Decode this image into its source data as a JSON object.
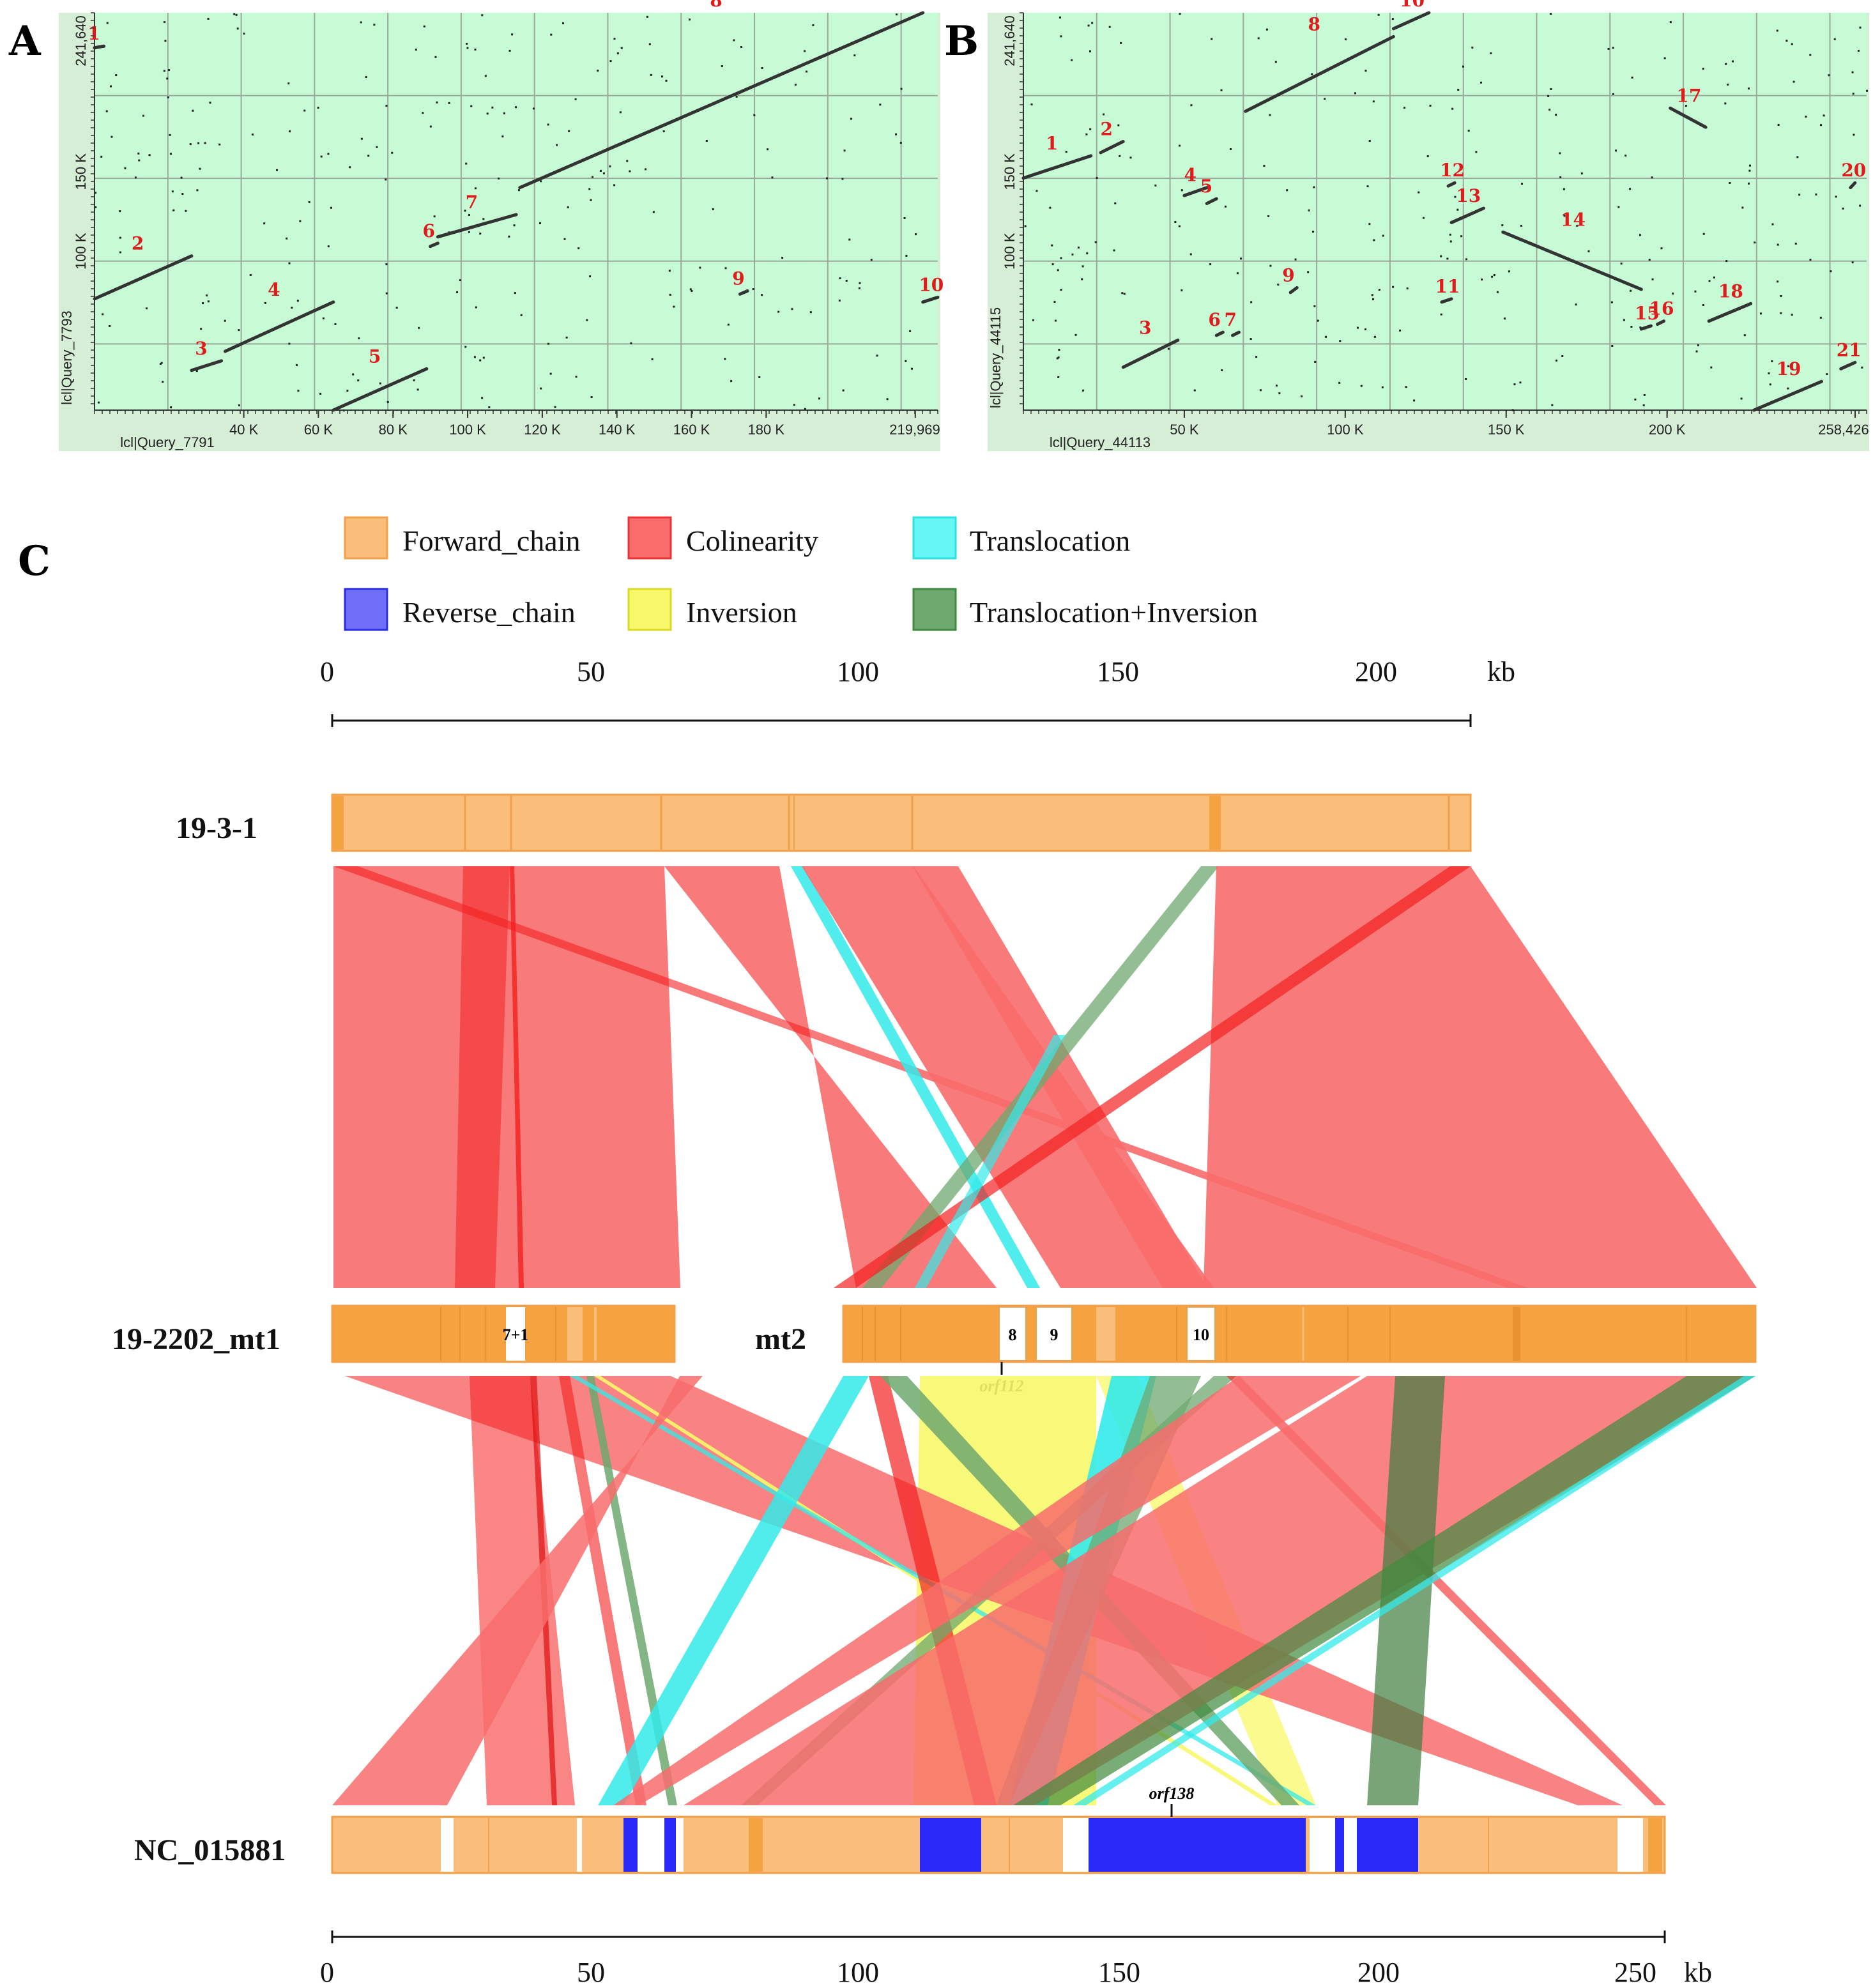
{
  "panels": {
    "a": "A",
    "b": "B",
    "c": "C"
  },
  "dotplot_a": {
    "y_axis_label": "lcl|Query_7793",
    "x_axis_label": "lcl|Query_7791",
    "y_ticks": [
      {
        "v": 241640,
        "t": "241,640"
      },
      {
        "v": 150000,
        "t": "150 K"
      },
      {
        "v": 100000,
        "t": "100 K"
      }
    ],
    "x_ticks": [
      {
        "v": 40000,
        "t": "40 K"
      },
      {
        "v": 60000,
        "t": "60 K"
      },
      {
        "v": 80000,
        "t": "80 K"
      },
      {
        "v": 100000,
        "t": "100 K"
      },
      {
        "v": 120000,
        "t": "120 K"
      },
      {
        "v": 140000,
        "t": "140 K"
      },
      {
        "v": 160000,
        "t": "160 K"
      },
      {
        "v": 180000,
        "t": "180 K"
      },
      {
        "v": 219969,
        "t": "219,969"
      }
    ],
    "x_max": 226000,
    "y_max": 250000,
    "segments": [
      {
        "label": "1",
        "x": [
          0,
          2500
        ],
        "y": [
          228000,
          229000
        ]
      },
      {
        "label": "2",
        "x": [
          0,
          26000
        ],
        "y": [
          70000,
          97000
        ]
      },
      {
        "label": "3",
        "x": [
          26000,
          34000
        ],
        "y": [
          25000,
          31000
        ]
      },
      {
        "label": "4",
        "x": [
          35000,
          64000
        ],
        "y": [
          37000,
          68000
        ]
      },
      {
        "label": "5",
        "x": [
          64000,
          89000
        ],
        "y": [
          0,
          26000
        ]
      },
      {
        "label": "6",
        "x": [
          90000,
          92000
        ],
        "y": [
          103000,
          105000
        ]
      },
      {
        "label": "7",
        "x": [
          92000,
          113000
        ],
        "y": [
          109000,
          123000
        ]
      },
      {
        "label": "8",
        "x": [
          114000,
          222000
        ],
        "y": [
          140000,
          250000
        ]
      },
      {
        "label": "9",
        "x": [
          173000,
          175000
        ],
        "y": [
          73000,
          75000
        ]
      },
      {
        "label": "10",
        "x": [
          222000,
          226000
        ],
        "y": [
          68000,
          71000
        ]
      }
    ]
  },
  "dotplot_b": {
    "y_axis_label": "lcl|Query_44115",
    "x_axis_label": "lcl|Query_44113",
    "y_ticks": [
      {
        "v": 241640,
        "t": "241,640"
      },
      {
        "v": 150000,
        "t": "150 K"
      },
      {
        "v": 100000,
        "t": "100 K"
      }
    ],
    "x_ticks": [
      {
        "v": 50000,
        "t": "50 K"
      },
      {
        "v": 100000,
        "t": "100 K"
      },
      {
        "v": 150000,
        "t": "150 K"
      },
      {
        "v": 200000,
        "t": "200 K"
      },
      {
        "v": 258426,
        "t": "258,426"
      }
    ],
    "x_max": 262000,
    "y_max": 250000,
    "segments": [
      {
        "label": "1",
        "x": [
          0,
          21000
        ],
        "y": [
          146000,
          160000
        ]
      },
      {
        "label": "2",
        "x": [
          24000,
          31000
        ],
        "y": [
          162000,
          169000
        ]
      },
      {
        "label": "3",
        "x": [
          31000,
          48000
        ],
        "y": [
          27000,
          44000
        ]
      },
      {
        "label": "4",
        "x": [
          50000,
          57000
        ],
        "y": [
          135000,
          140000
        ]
      },
      {
        "label": "5",
        "x": [
          57000,
          60000
        ],
        "y": [
          130000,
          133000
        ]
      },
      {
        "label": "6",
        "x": [
          60000,
          62000
        ],
        "y": [
          47000,
          49000
        ]
      },
      {
        "label": "7",
        "x": [
          65000,
          67000
        ],
        "y": [
          47000,
          49000
        ]
      },
      {
        "label": "8",
        "x": [
          69000,
          115000
        ],
        "y": [
          188000,
          235000
        ]
      },
      {
        "label": "9",
        "x": [
          83000,
          85000
        ],
        "y": [
          74000,
          77000
        ]
      },
      {
        "label": "10",
        "x": [
          115000,
          126000
        ],
        "y": [
          240000,
          250000
        ]
      },
      {
        "label": "11",
        "x": [
          130000,
          133000
        ],
        "y": [
          68000,
          70000
        ]
      },
      {
        "label": "12",
        "x": [
          132000,
          134000
        ],
        "y": [
          141000,
          143000
        ]
      },
      {
        "label": "13",
        "x": [
          133000,
          143000
        ],
        "y": [
          118000,
          127000
        ]
      },
      {
        "label": "14",
        "x": [
          149000,
          192000
        ],
        "y": [
          112000,
          76000
        ]
      },
      {
        "label": "15",
        "x": [
          192000,
          195000
        ],
        "y": [
          51000,
          53000
        ]
      },
      {
        "label": "16",
        "x": [
          197000,
          199000
        ],
        "y": [
          54000,
          56000
        ]
      },
      {
        "label": "17",
        "x": [
          201000,
          212000
        ],
        "y": [
          190000,
          178000
        ]
      },
      {
        "label": "18",
        "x": [
          213000,
          226000
        ],
        "y": [
          56000,
          67000
        ]
      },
      {
        "label": "19",
        "x": [
          227000,
          248000
        ],
        "y": [
          0,
          18000
        ]
      },
      {
        "label": "20",
        "x": [
          257000,
          258400
        ],
        "y": [
          140000,
          143000
        ]
      },
      {
        "label": "21",
        "x": [
          254000,
          258400
        ],
        "y": [
          26000,
          30000
        ]
      }
    ]
  },
  "legend": [
    {
      "key": "forward",
      "label": "Forward_chain",
      "color": "#FBBE7A",
      "stroke": "#F0A04A"
    },
    {
      "key": "colinear",
      "label": "Colinearity",
      "color": "#F86C6C",
      "stroke": "#E83434"
    },
    {
      "key": "transloc",
      "label": "Translocation",
      "color": "#66F6F6",
      "stroke": "#2FE0E0"
    },
    {
      "key": "reverse",
      "label": "Reverse_chain",
      "color": "#6E6EF8",
      "stroke": "#2C2CE0"
    },
    {
      "key": "inversion",
      "label": "Inversion",
      "color": "#F8F86A",
      "stroke": "#DADA28"
    },
    {
      "key": "transinv",
      "label": "Translocation+Inversion",
      "color": "#6FA86F",
      "stroke": "#3E8A3E"
    }
  ],
  "scale_top": {
    "ticks": [
      "0",
      "50",
      "100",
      "150",
      "200"
    ],
    "unit": "kb"
  },
  "scale_bottom": {
    "ticks": [
      "0",
      "50",
      "100",
      "150",
      "200",
      "250"
    ],
    "unit": "kb"
  },
  "tracks": {
    "t1_name": "19-3-1",
    "t2_name": "19-2202_mt1",
    "t2b_name": "mt2",
    "t3_name": "NC_015881"
  },
  "box_labels": {
    "b71": "7+1",
    "b8": "8",
    "b9": "9",
    "b10": "10"
  },
  "orfs": {
    "top": "orf112",
    "bottom": "orf138"
  }
}
